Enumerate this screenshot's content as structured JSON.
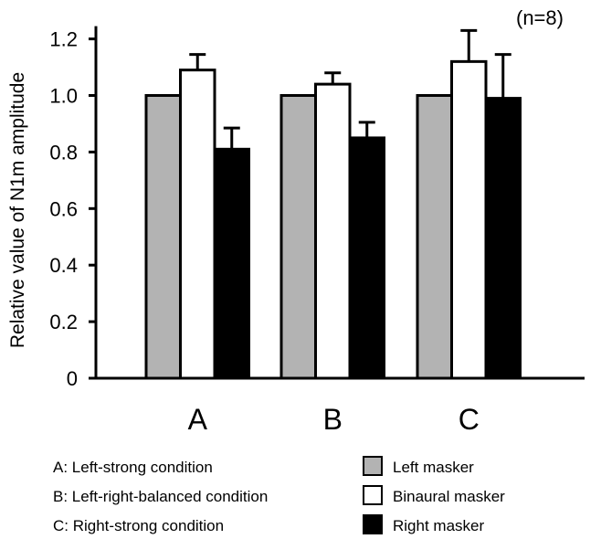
{
  "chart_data": {
    "type": "bar",
    "title": "",
    "annotation": "(n=8)",
    "xlabel": "",
    "ylabel": "Relative value of N1m amplitude",
    "ylim": [
      0,
      1.2
    ],
    "yticks": [
      "0",
      "0.2",
      "0.4",
      "0.6",
      "0.8",
      "1.0",
      "1.2"
    ],
    "ytick_values": [
      0,
      0.2,
      0.4,
      0.6,
      0.8,
      1.0,
      1.2
    ],
    "categories": [
      "A",
      "B",
      "C"
    ],
    "series": [
      {
        "name": "Left masker",
        "color": "#b3b3b3",
        "values": [
          1.0,
          1.0,
          1.0
        ],
        "errors": [
          0,
          0,
          0
        ]
      },
      {
        "name": "Binaural masker",
        "color": "#ffffff",
        "values": [
          1.09,
          1.04,
          1.12
        ],
        "errors": [
          0.055,
          0.04,
          0.11
        ]
      },
      {
        "name": "Right masker",
        "color": "#000000",
        "values": [
          0.81,
          0.85,
          0.99
        ],
        "errors": [
          0.075,
          0.055,
          0.155
        ]
      }
    ],
    "category_legend": [
      "A: Left-strong condition",
      "B: Left-right-balanced condition",
      "C: Right-strong condition"
    ],
    "legend_placement": "bottom"
  }
}
